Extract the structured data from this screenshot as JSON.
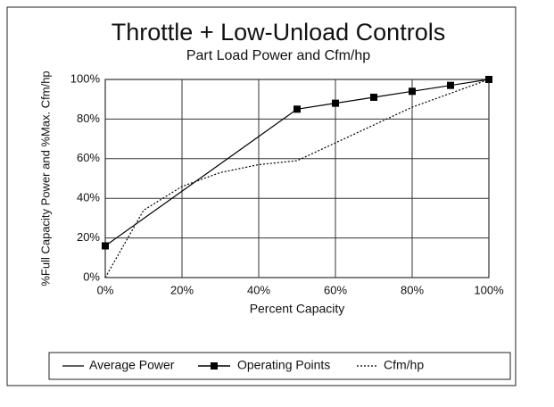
{
  "chart_data": {
    "type": "line",
    "title": "Throttle + Low-Unload Controls",
    "subtitle": "Part Load Power and Cfm/hp",
    "x_label": "Percent Capacity",
    "y_label": "%Full Capacity Power and %Max. Cfm/hp",
    "xlim": [
      0,
      100
    ],
    "ylim": [
      0,
      100
    ],
    "xticks": [
      {
        "value": 0,
        "label": "0%"
      },
      {
        "value": 20,
        "label": "20%"
      },
      {
        "value": 40,
        "label": "40%"
      },
      {
        "value": 60,
        "label": "60%"
      },
      {
        "value": 80,
        "label": "80%"
      },
      {
        "value": 100,
        "label": "100%"
      }
    ],
    "yticks": [
      {
        "value": 0,
        "label": "0%"
      },
      {
        "value": 20,
        "label": "20%"
      },
      {
        "value": 40,
        "label": "40%"
      },
      {
        "value": 60,
        "label": "60%"
      },
      {
        "value": 80,
        "label": "80%"
      },
      {
        "value": 100,
        "label": "100%"
      }
    ],
    "grid": true,
    "legend": "bottom",
    "series": [
      {
        "name": "Average Power",
        "color": "#000000",
        "line": "solid",
        "x": [
          0,
          50,
          60,
          70,
          80,
          90,
          100
        ],
        "values": [
          16,
          85,
          88,
          91,
          94,
          97,
          100
        ]
      },
      {
        "name": "Operating Points",
        "color": "#000000",
        "line": "none",
        "marker": "square",
        "x": [
          0,
          50,
          60,
          70,
          80,
          90,
          100
        ],
        "values": [
          16,
          85,
          88,
          91,
          94,
          97,
          100
        ]
      },
      {
        "name": "Cfm/hp",
        "color": "#000000",
        "line": "dotted",
        "x": [
          0,
          10,
          20,
          30,
          40,
          50,
          60,
          70,
          80,
          90,
          100
        ],
        "values": [
          0,
          34,
          46,
          53,
          57,
          59,
          68,
          77,
          86,
          93,
          100
        ]
      }
    ]
  }
}
